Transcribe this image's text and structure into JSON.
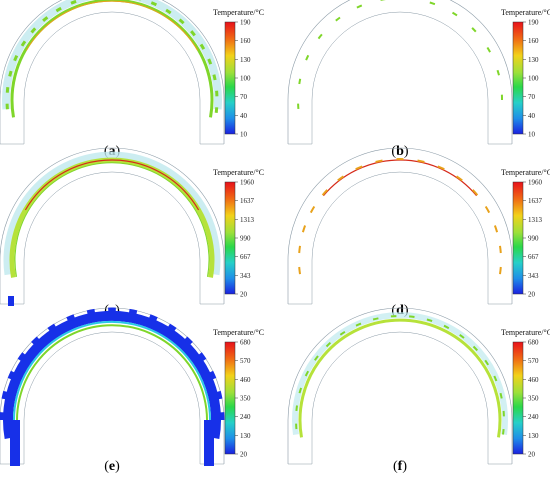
{
  "figure": {
    "panels": [
      {
        "label_open": "(",
        "label_letter": "a",
        "label_close": ")",
        "colorbar": {
          "title": "Temperature/°C",
          "ticks": [
            "190",
            "160",
            "130",
            "100",
            "70",
            "40",
            "10"
          ]
        },
        "variant": "thick-green"
      },
      {
        "label_open": "(",
        "label_letter": "b",
        "label_close": ")",
        "colorbar": {
          "title": "Temperature/°C",
          "ticks": [
            "190",
            "160",
            "130",
            "100",
            "70",
            "40",
            "10"
          ]
        },
        "variant": "sparse-green"
      },
      {
        "label_open": "(",
        "label_letter": "c",
        "label_close": ")",
        "colorbar": {
          "title": "Temperature/°C",
          "ticks": [
            "1960",
            "1637",
            "1313",
            "990",
            "667",
            "343",
            "20"
          ]
        },
        "variant": "hot-ring"
      },
      {
        "label_open": "(",
        "label_letter": "d",
        "label_close": ")",
        "colorbar": {
          "title": "Temperature/°C",
          "ticks": [
            "1960",
            "1637",
            "1313",
            "990",
            "667",
            "343",
            "20"
          ]
        },
        "variant": "sparse-orange"
      },
      {
        "label_open": "(",
        "label_letter": "e",
        "label_close": ")",
        "colorbar": {
          "title": "Temperature/°C",
          "ticks": [
            "680",
            "570",
            "460",
            "350",
            "240",
            "130",
            "20"
          ]
        },
        "variant": "blue-band"
      },
      {
        "label_open": "(",
        "label_letter": "f",
        "label_close": ")",
        "colorbar": {
          "title": "Temperature/°C",
          "ticks": [
            "680",
            "570",
            "460",
            "350",
            "240",
            "130",
            "20"
          ]
        },
        "variant": "green-ring"
      }
    ],
    "colors": {
      "outline": "#8a9aa6",
      "faint_cyan": "#bfe9ee",
      "green": "#7fd62a",
      "yellow_green": "#b6e23a",
      "orange": "#e8a21c",
      "red": "#d62a1a",
      "blue": "#1730e8",
      "cyan": "#2ac8e6"
    }
  }
}
